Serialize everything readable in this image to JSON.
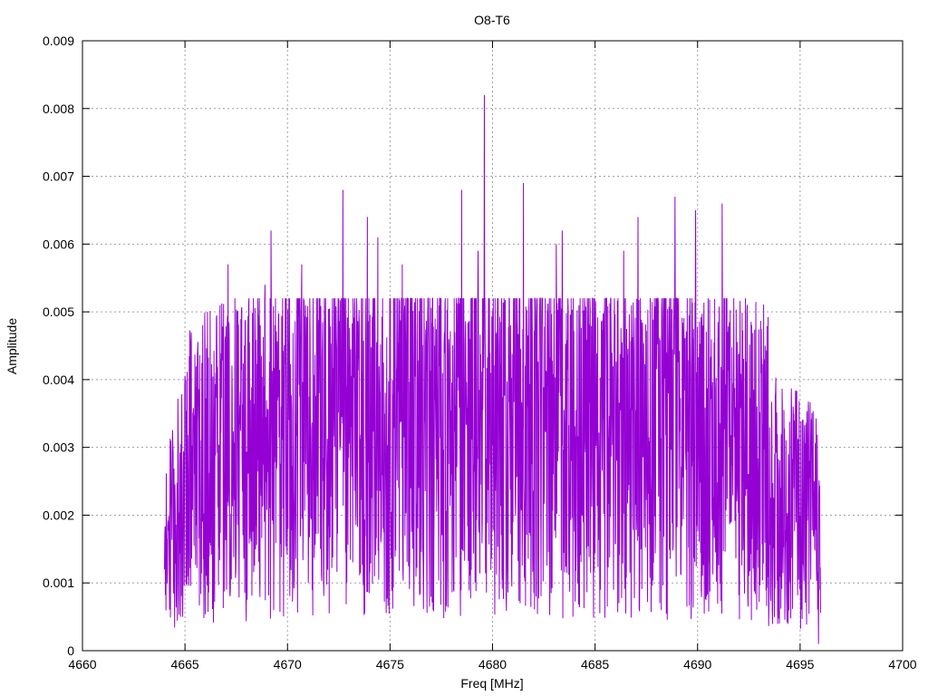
{
  "chart_data": {
    "type": "line",
    "title": "O8-T6",
    "xlabel": "Freq [MHz]",
    "ylabel": "Amplitude",
    "xlim": [
      4660,
      4700
    ],
    "ylim": [
      0,
      0.009
    ],
    "xticks": [
      4660,
      4665,
      4670,
      4675,
      4680,
      4685,
      4690,
      4695,
      4700
    ],
    "xtick_labels": [
      "4660",
      "4665",
      "4670",
      "4675",
      "4680",
      "4685",
      "4690",
      "4695",
      "4700"
    ],
    "yticks": [
      0,
      0.001,
      0.002,
      0.003,
      0.004,
      0.005,
      0.006,
      0.007,
      0.008,
      0.009
    ],
    "ytick_labels": [
      "0",
      "0.001",
      "0.002",
      "0.003",
      "0.004",
      "0.005",
      "0.006",
      "0.007",
      "0.008",
      "0.009"
    ],
    "grid": true,
    "line_color": "#9400d3",
    "series": [
      {
        "x_start": 4664.0,
        "x_end": 4696.0,
        "sample_count": 2200,
        "peaks": [
          {
            "x": 4664.0,
            "y": 0.0012
          },
          {
            "x": 4664.1,
            "y": 0.0015
          },
          {
            "x": 4664.3,
            "y": 0.0031
          },
          {
            "x": 4665.4,
            "y": 0.0035
          },
          {
            "x": 4666.1,
            "y": 0.005
          },
          {
            "x": 4666.5,
            "y": 0.0041
          },
          {
            "x": 4667.1,
            "y": 0.0057
          },
          {
            "x": 4668.1,
            "y": 0.0051
          },
          {
            "x": 4668.9,
            "y": 0.0054
          },
          {
            "x": 4669.2,
            "y": 0.0062
          },
          {
            "x": 4670.7,
            "y": 0.0057
          },
          {
            "x": 4672.7,
            "y": 0.0068
          },
          {
            "x": 4673.9,
            "y": 0.0064
          },
          {
            "x": 4674.4,
            "y": 0.0061
          },
          {
            "x": 4675.6,
            "y": 0.0057
          },
          {
            "x": 4678.5,
            "y": 0.0068
          },
          {
            "x": 4679.3,
            "y": 0.0059
          },
          {
            "x": 4679.6,
            "y": 0.0082
          },
          {
            "x": 4681.5,
            "y": 0.0069
          },
          {
            "x": 4683.1,
            "y": 0.006
          },
          {
            "x": 4683.4,
            "y": 0.0062
          },
          {
            "x": 4686.4,
            "y": 0.0059
          },
          {
            "x": 4687.1,
            "y": 0.0064
          },
          {
            "x": 4688.9,
            "y": 0.0067
          },
          {
            "x": 4689.9,
            "y": 0.0065
          },
          {
            "x": 4691.2,
            "y": 0.0066
          },
          {
            "x": 4692.4,
            "y": 0.005
          },
          {
            "x": 4693.3,
            "y": 0.0045
          },
          {
            "x": 4694.7,
            "y": 0.0024
          },
          {
            "x": 4695.7,
            "y": 0.0025
          },
          {
            "x": 4695.9,
            "y": 0.0001
          }
        ]
      }
    ]
  }
}
